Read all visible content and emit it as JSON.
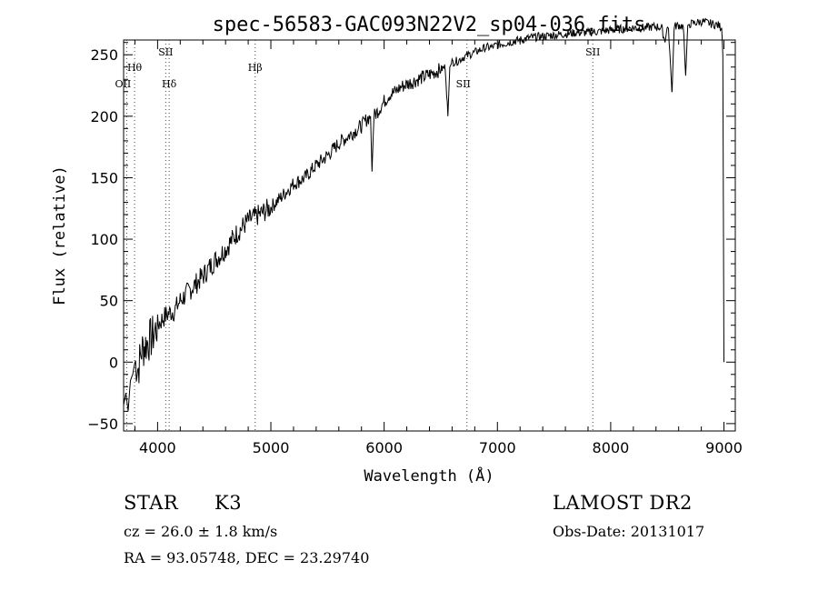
{
  "chart_data": {
    "type": "line",
    "title": "spec-56583-GAC093N22V2_sp04-036.fits",
    "xlabel": "Wavelength (Å)",
    "ylabel": "Flux (relative)",
    "xlim": [
      3700,
      9100
    ],
    "ylim": [
      -56,
      262
    ],
    "x_ticks": [
      4000,
      5000,
      6000,
      7000,
      8000,
      9000
    ],
    "y_ticks": [
      -50,
      0,
      50,
      100,
      150,
      200,
      250
    ],
    "grid": false,
    "series": [
      {
        "x": [
          3700,
          3720,
          3740,
          3760,
          3780,
          3800,
          3830,
          3860,
          3900,
          3950,
          4000,
          4050,
          4100,
          4150,
          4200,
          4300,
          4400,
          4500,
          4600,
          4700,
          4800,
          4900,
          5000,
          5100,
          5200,
          5300,
          5400,
          5500,
          5600,
          5700,
          5800,
          5850,
          5880,
          5893,
          5910,
          5950,
          6000,
          6050,
          6100,
          6150,
          6200,
          6300,
          6400,
          6500,
          6540,
          6563,
          6580,
          6600,
          6650,
          6700,
          6750,
          6800,
          6850,
          6900,
          6950,
          7000,
          7100,
          7200,
          7300,
          7400,
          7500,
          7600,
          7700,
          7800,
          7900,
          8000,
          8100,
          8200,
          8300,
          8400,
          8450,
          8480,
          8498,
          8510,
          8540,
          8542,
          8560,
          8600,
          8640,
          8662,
          8680,
          8700,
          8750,
          8800,
          8850,
          8900,
          8950,
          8980,
          8990,
          9000
        ],
        "values": [
          -35,
          -25,
          -40,
          -15,
          -10,
          0,
          -5,
          10,
          15,
          20,
          30,
          36,
          40,
          42,
          50,
          60,
          70,
          82,
          92,
          105,
          115,
          120,
          126,
          135,
          145,
          150,
          160,
          168,
          178,
          185,
          192,
          198,
          200,
          155,
          200,
          205,
          212,
          218,
          220,
          224,
          226,
          230,
          234,
          238,
          240,
          200,
          240,
          244,
          245,
          248,
          250,
          252,
          254,
          256,
          256,
          258,
          260,
          262,
          264,
          265,
          266,
          267,
          268,
          268,
          269,
          270,
          271,
          272,
          272,
          273,
          272,
          260,
          272,
          273,
          220,
          220,
          273,
          274,
          273,
          233,
          274,
          275,
          276,
          277,
          276,
          275,
          274,
          272,
          250,
          0
        ]
      }
    ],
    "lines": [
      {
        "label": "Hθ",
        "x": 3797
      },
      {
        "label": "OII",
        "x": 3727
      },
      {
        "label": "SII",
        "x": 4072
      },
      {
        "label": "Hδ",
        "x": 4102
      },
      {
        "label": "Hβ",
        "x": 4861
      },
      {
        "label": "SII",
        "x": 6731
      },
      {
        "label": "SII",
        "x": 7842
      }
    ]
  },
  "info": {
    "object_class": "STAR",
    "subclass": "K3",
    "survey": "LAMOST DR2",
    "redshift": "cz = 26.0 ± 1.8 km/s",
    "obs_date": "Obs-Date: 20131017",
    "coords": "RA =  93.05748, DEC =  23.29740"
  }
}
